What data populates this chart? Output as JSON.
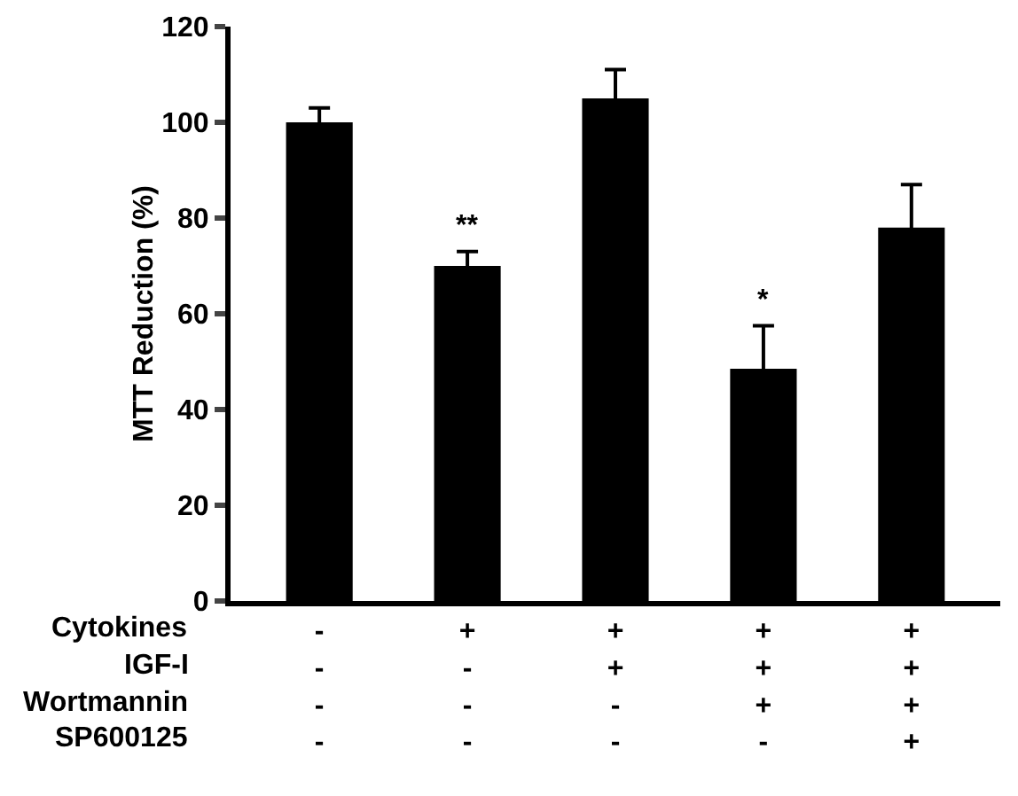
{
  "chart_data": {
    "type": "bar",
    "ylabel": "MTT Reduction (%)",
    "categories": [
      "-\n-\n-\n-",
      "+\n-\n-\n-",
      "+\n+\n-\n-",
      "+\n+\n+\n-",
      "+\n+\n+\n+"
    ],
    "values": [
      100,
      70,
      105,
      48.5,
      78
    ],
    "errors": [
      3,
      3,
      6,
      9,
      9
    ],
    "color": "#000000",
    "ylim": [
      0,
      120
    ],
    "yticks": [
      0,
      20,
      40,
      60,
      80,
      100,
      120
    ],
    "annotations": [
      {
        "text": "**",
        "x": "+\n-\n-\n-",
        "y": 73
      },
      {
        "text": "*",
        "x": "+\n+\n+\n-",
        "y": 57.5
      },
      "Cytokines",
      "IGF-I",
      "Wortmannin",
      "SP600125"
    ]
  }
}
